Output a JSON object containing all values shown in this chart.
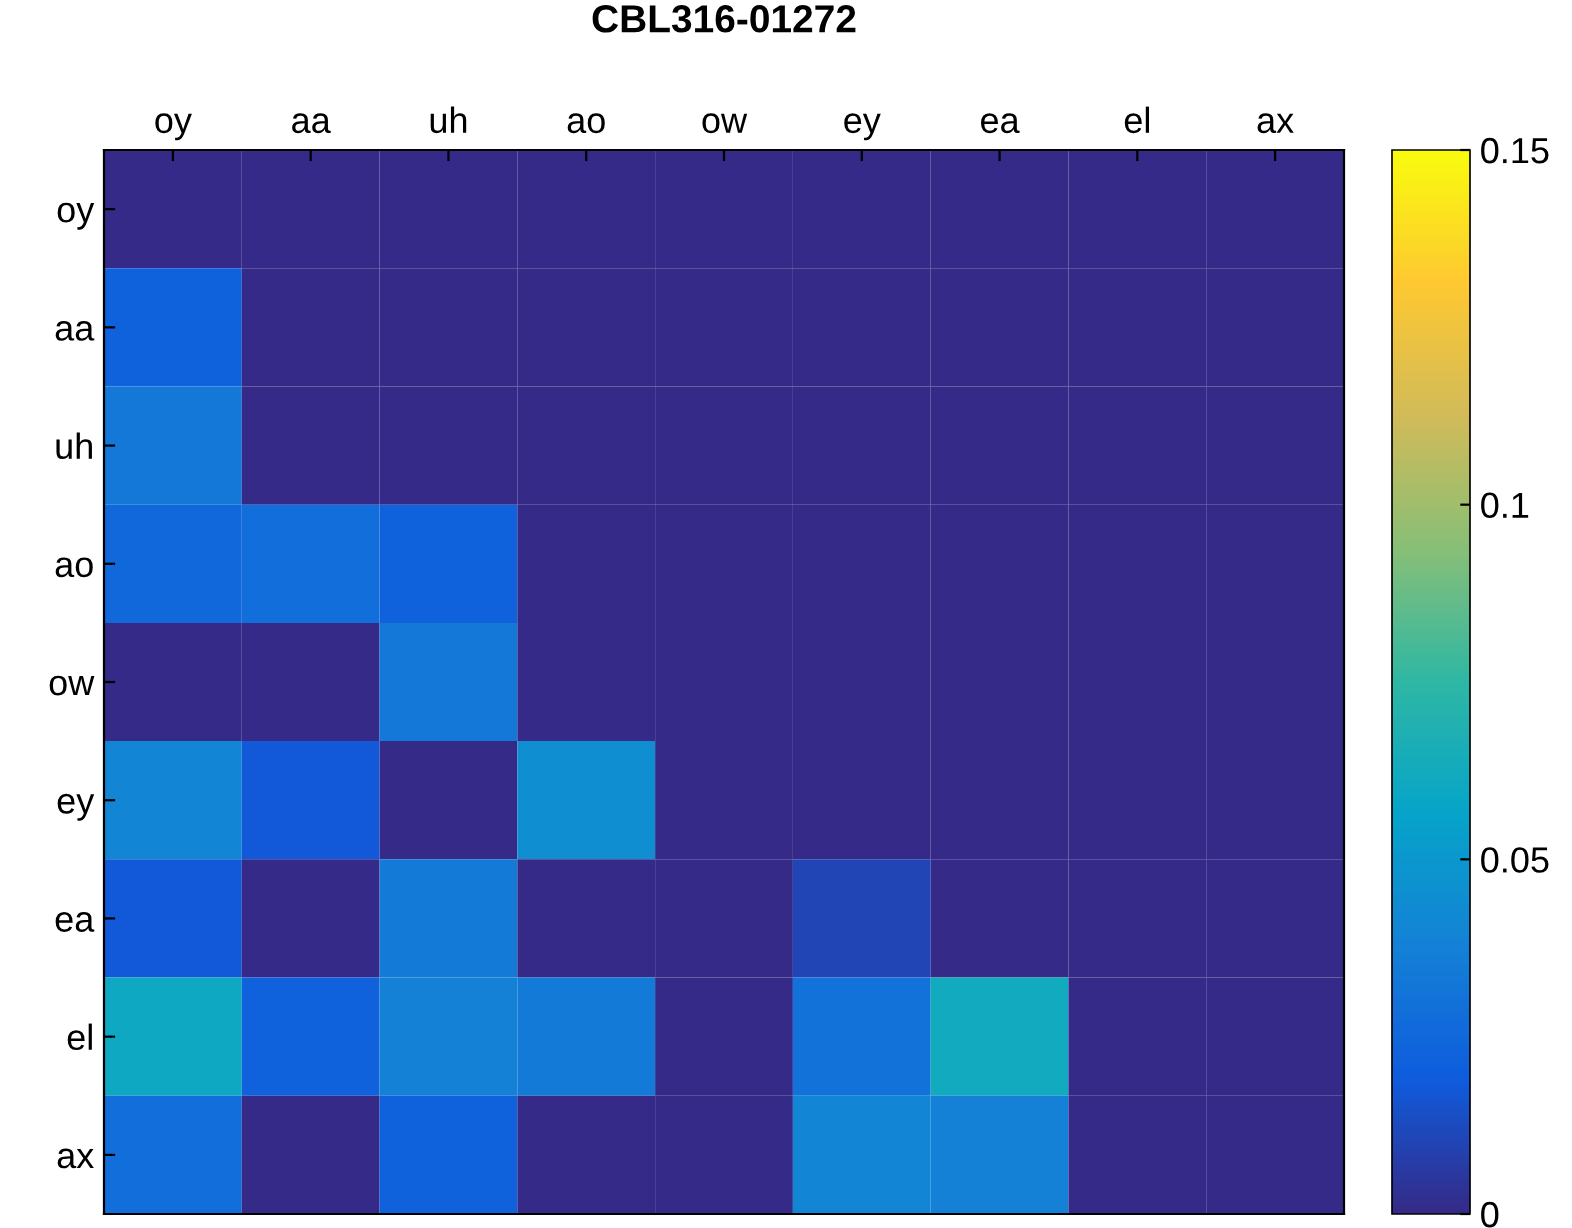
{
  "chart_data": {
    "type": "heatmap",
    "title": "CBL316-01272",
    "categories": [
      "oy",
      "aa",
      "uh",
      "ao",
      "ow",
      "ey",
      "ea",
      "el",
      "ax"
    ],
    "y_categories": [
      "oy",
      "aa",
      "uh",
      "ao",
      "ow",
      "ey",
      "ea",
      "el",
      "ax"
    ],
    "cells": [
      [
        0,
        0,
        0,
        0,
        0,
        0,
        0,
        0,
        0
      ],
      [
        0.022,
        0,
        0,
        0,
        0,
        0,
        0,
        0,
        0
      ],
      [
        0.033,
        0,
        0,
        0,
        0,
        0,
        0,
        0,
        0
      ],
      [
        0.025,
        0.028,
        0.022,
        0,
        0,
        0,
        0,
        0,
        0
      ],
      [
        0,
        0,
        0.033,
        0,
        0,
        0,
        0,
        0,
        0
      ],
      [
        0.04,
        0.018,
        0,
        0.045,
        0,
        0,
        0,
        0,
        0
      ],
      [
        0.018,
        0,
        0.035,
        0,
        0,
        0.01,
        0,
        0,
        0
      ],
      [
        0.06,
        0.022,
        0.037,
        0.035,
        0,
        0.03,
        0.062,
        0,
        0
      ],
      [
        0.028,
        0,
        0.022,
        0,
        0,
        0.04,
        0.037,
        0,
        0
      ]
    ],
    "clim": [
      0,
      0.15
    ],
    "cticks": [
      0,
      0.05,
      0.1,
      0.15
    ]
  }
}
